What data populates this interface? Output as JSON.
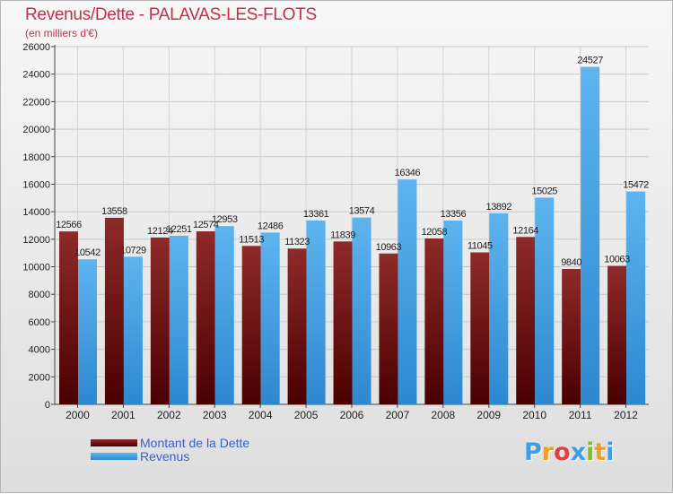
{
  "header": {
    "title": "Revenus/Dette - PALAVAS-LES-FLOTS",
    "subtitle": "(en milliers d'€)"
  },
  "logo": {
    "text": "Proxiti",
    "colors": [
      "#3e9ee8",
      "#f0a020",
      "#e04040",
      "#3e9ee8",
      "#80c020",
      "#f0a020",
      "#3e9ee8"
    ]
  },
  "colors": {
    "title": "#c0304a",
    "debt_top": "#8e2a2a",
    "debt_bottom": "#4a0000",
    "revenue_top": "#5db4ee",
    "revenue_bottom": "#2e88d0",
    "legend_text": "#3a5fd0"
  },
  "chart_data": {
    "type": "bar",
    "categories": [
      "2000",
      "2001",
      "2002",
      "2003",
      "2004",
      "2005",
      "2006",
      "2007",
      "2008",
      "2009",
      "2010",
      "2011",
      "2012"
    ],
    "series": [
      {
        "name": "Montant de la Dette",
        "values": [
          12566,
          13558,
          12124,
          12574,
          11513,
          11323,
          11839,
          10963,
          12058,
          11045,
          12164,
          9840,
          10063
        ],
        "labels": [
          "12566",
          "13558",
          "12124",
          "12574",
          "11513",
          "11323",
          "11839",
          "10963",
          "12058",
          "11045",
          "12164",
          "9840",
          "10063"
        ]
      },
      {
        "name": "Revenus",
        "values": [
          10542,
          10729,
          12251,
          12953,
          12486,
          13361,
          13574,
          16346,
          13356,
          13892,
          15025,
          24527,
          15472
        ],
        "labels": [
          "10542",
          "10729",
          "12251",
          "12953",
          "12486",
          "13361",
          "13574",
          "16346",
          "13356",
          "13892",
          "15025",
          "24527",
          "15472"
        ]
      }
    ],
    "title": "Revenus/Dette - PALAVAS-LES-FLOTS",
    "subtitle": "(en milliers d'€)",
    "xlabel": "",
    "ylabel": "",
    "ylim": [
      0,
      26000
    ],
    "yticks": [
      0,
      2000,
      4000,
      6000,
      8000,
      10000,
      12000,
      14000,
      16000,
      18000,
      20000,
      22000,
      24000,
      26000
    ],
    "grid": true,
    "legend": "bottom-left"
  }
}
